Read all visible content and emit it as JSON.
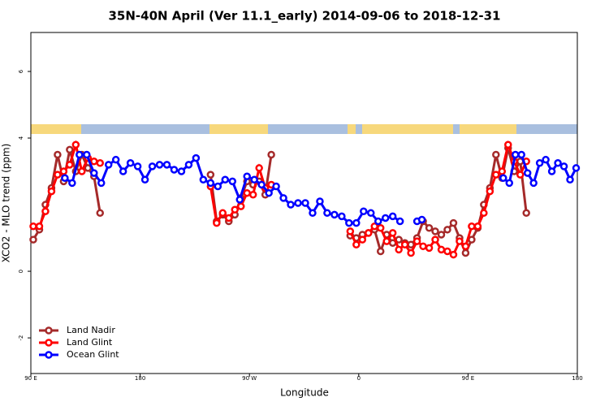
{
  "chart_data": {
    "type": "line",
    "title": "35N-40N April (Ver 11.1_early)   2014-09-06 to 2018-12-31",
    "x_label": "Longitude",
    "y_label": "XCO2 - MLO trend (ppm)",
    "xlim": [
      90,
      540
    ],
    "xticks": [
      {
        "value": 90,
        "label": "90 E"
      },
      {
        "value": 180,
        "label": "180"
      },
      {
        "value": 270,
        "label": "90 W"
      },
      {
        "value": 360,
        "label": "0"
      },
      {
        "value": 450,
        "label": "90 E"
      },
      {
        "value": 540,
        "label": "180"
      }
    ],
    "ylim": [
      -3.07,
      7.17
    ],
    "yticks": [
      -2,
      0,
      4,
      6
    ],
    "legend": "bottom-left",
    "series": [
      {
        "name": "Land Nadir",
        "color": "#a52a2a",
        "x": [
          92,
          97,
          102,
          107,
          112,
          117,
          122,
          127,
          132,
          137,
          142,
          147,
          190,
          238,
          243,
          248,
          253,
          258,
          263,
          268,
          273,
          278,
          283,
          288,
          320,
          353,
          358,
          363,
          368,
          373,
          378,
          383,
          388,
          393,
          398,
          403,
          408,
          413,
          418,
          423,
          428,
          433,
          438,
          443,
          448,
          453,
          458,
          463,
          468,
          473,
          478,
          483,
          488,
          493,
          498
        ],
        "values": [
          0.95,
          1.25,
          2.0,
          2.5,
          3.5,
          2.7,
          3.65,
          3.0,
          3.5,
          3.1,
          2.85,
          1.75,
          null,
          2.9,
          1.5,
          1.7,
          1.5,
          1.7,
          2.2,
          2.7,
          2.6,
          2.7,
          2.3,
          3.5,
          null,
          1.07,
          1.0,
          1.1,
          1.15,
          1.25,
          0.6,
          1.1,
          0.85,
          0.95,
          0.85,
          0.8,
          1.0,
          1.5,
          1.3,
          1.2,
          1.1,
          1.25,
          1.45,
          1.0,
          0.55,
          0.95,
          1.3,
          2.0,
          2.5,
          3.5,
          2.8,
          3.7,
          3.0,
          3.3,
          1.75
        ]
      },
      {
        "name": "Land Glint",
        "color": "#ff0000",
        "x": [
          92,
          97,
          102,
          107,
          112,
          117,
          122,
          127,
          132,
          137,
          142,
          147,
          190,
          238,
          243,
          248,
          253,
          258,
          263,
          268,
          273,
          278,
          283,
          288,
          320,
          353,
          358,
          363,
          368,
          373,
          378,
          383,
          388,
          393,
          398,
          403,
          408,
          413,
          418,
          423,
          428,
          433,
          438,
          443,
          448,
          453,
          458,
          463,
          468,
          473,
          478,
          483,
          488,
          493,
          498
        ],
        "values": [
          1.35,
          1.35,
          1.8,
          2.4,
          2.9,
          3.0,
          3.2,
          3.8,
          3.0,
          3.4,
          3.3,
          3.25,
          null,
          2.55,
          1.45,
          1.75,
          1.6,
          1.85,
          1.95,
          2.35,
          2.3,
          3.1,
          2.5,
          2.6,
          null,
          1.2,
          0.8,
          0.95,
          1.15,
          1.35,
          1.3,
          0.9,
          1.15,
          0.65,
          0.8,
          0.55,
          0.9,
          0.75,
          0.7,
          0.95,
          0.65,
          0.6,
          0.5,
          0.9,
          0.75,
          1.35,
          1.35,
          1.75,
          2.4,
          2.9,
          3.0,
          3.8,
          3.3,
          2.9,
          3.3
        ]
      },
      {
        "name": "Ocean Glint",
        "color": "#0000ff",
        "x": [
          118,
          124,
          130,
          136,
          142,
          148,
          154,
          160,
          166,
          172,
          178,
          184,
          190,
          196,
          202,
          208,
          214,
          220,
          226,
          232,
          238,
          244,
          250,
          256,
          262,
          268,
          274,
          280,
          286,
          292,
          298,
          304,
          310,
          316,
          322,
          328,
          334,
          340,
          346,
          352,
          358,
          364,
          370,
          376,
          382,
          388,
          394,
          400,
          408,
          412,
          420,
          479,
          484,
          489,
          494,
          499,
          504,
          509,
          514,
          519,
          524,
          529,
          534,
          539
        ],
        "values": [
          2.8,
          2.65,
          3.5,
          3.5,
          2.95,
          2.65,
          3.2,
          3.35,
          3.0,
          3.25,
          3.15,
          2.75,
          3.15,
          3.2,
          3.2,
          3.05,
          3.0,
          3.2,
          3.4,
          2.75,
          2.65,
          2.55,
          2.75,
          2.7,
          2.15,
          2.85,
          2.75,
          2.6,
          2.35,
          2.55,
          2.2,
          2.0,
          2.05,
          2.05,
          1.75,
          2.1,
          1.75,
          1.7,
          1.65,
          1.45,
          1.45,
          1.8,
          1.75,
          1.5,
          1.6,
          1.65,
          1.5,
          null,
          1.5,
          1.55,
          null,
          2.8,
          2.65,
          3.5,
          3.5,
          2.95,
          2.65,
          3.25,
          3.35,
          3.0,
          3.25,
          3.15,
          2.75,
          3.1
        ]
      }
    ]
  }
}
